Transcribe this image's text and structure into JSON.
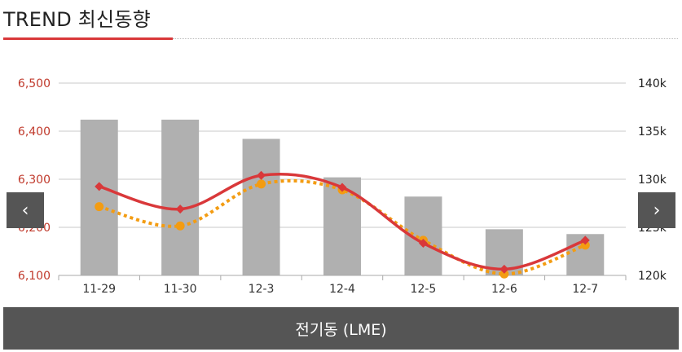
{
  "header": {
    "title": "TREND 최신동향"
  },
  "nav": {
    "prev_glyph": "‹",
    "next_glyph": "›"
  },
  "footer": {
    "label": "전기동 (LME)"
  },
  "colors": {
    "accent": "#d9383a",
    "bar": "#b0b0b0",
    "secondary_line": "#f39c12",
    "left_axis_text": "#c0392b",
    "footer_bg": "#555555"
  },
  "chart_data": {
    "type": "bar+line",
    "categories": [
      "11-29",
      "11-30",
      "12-3",
      "12-4",
      "12-5",
      "12-6",
      "12-7"
    ],
    "left_axis": {
      "ticks": [
        "6,100",
        "6,200",
        "6,300",
        "6,400",
        "6,500"
      ],
      "min": 6100,
      "max": 6500
    },
    "right_axis": {
      "ticks": [
        "120k",
        "125k",
        "130k",
        "135k",
        "140k"
      ],
      "min": 120000,
      "max": 140000
    },
    "series": [
      {
        "kind": "bar",
        "axis": "right",
        "values": [
          136200,
          136200,
          134200,
          130200,
          128200,
          124800,
          124300
        ]
      },
      {
        "kind": "line",
        "axis": "left",
        "style": "solid",
        "marker": "diamond",
        "values": [
          6285,
          6238,
          6308,
          6283,
          6167,
          6113,
          6173
        ]
      },
      {
        "kind": "line",
        "axis": "left",
        "style": "dotted",
        "marker": "circle",
        "values": [
          6243,
          6203,
          6290,
          6278,
          6173,
          6103,
          6163
        ]
      }
    ],
    "grid": true
  }
}
